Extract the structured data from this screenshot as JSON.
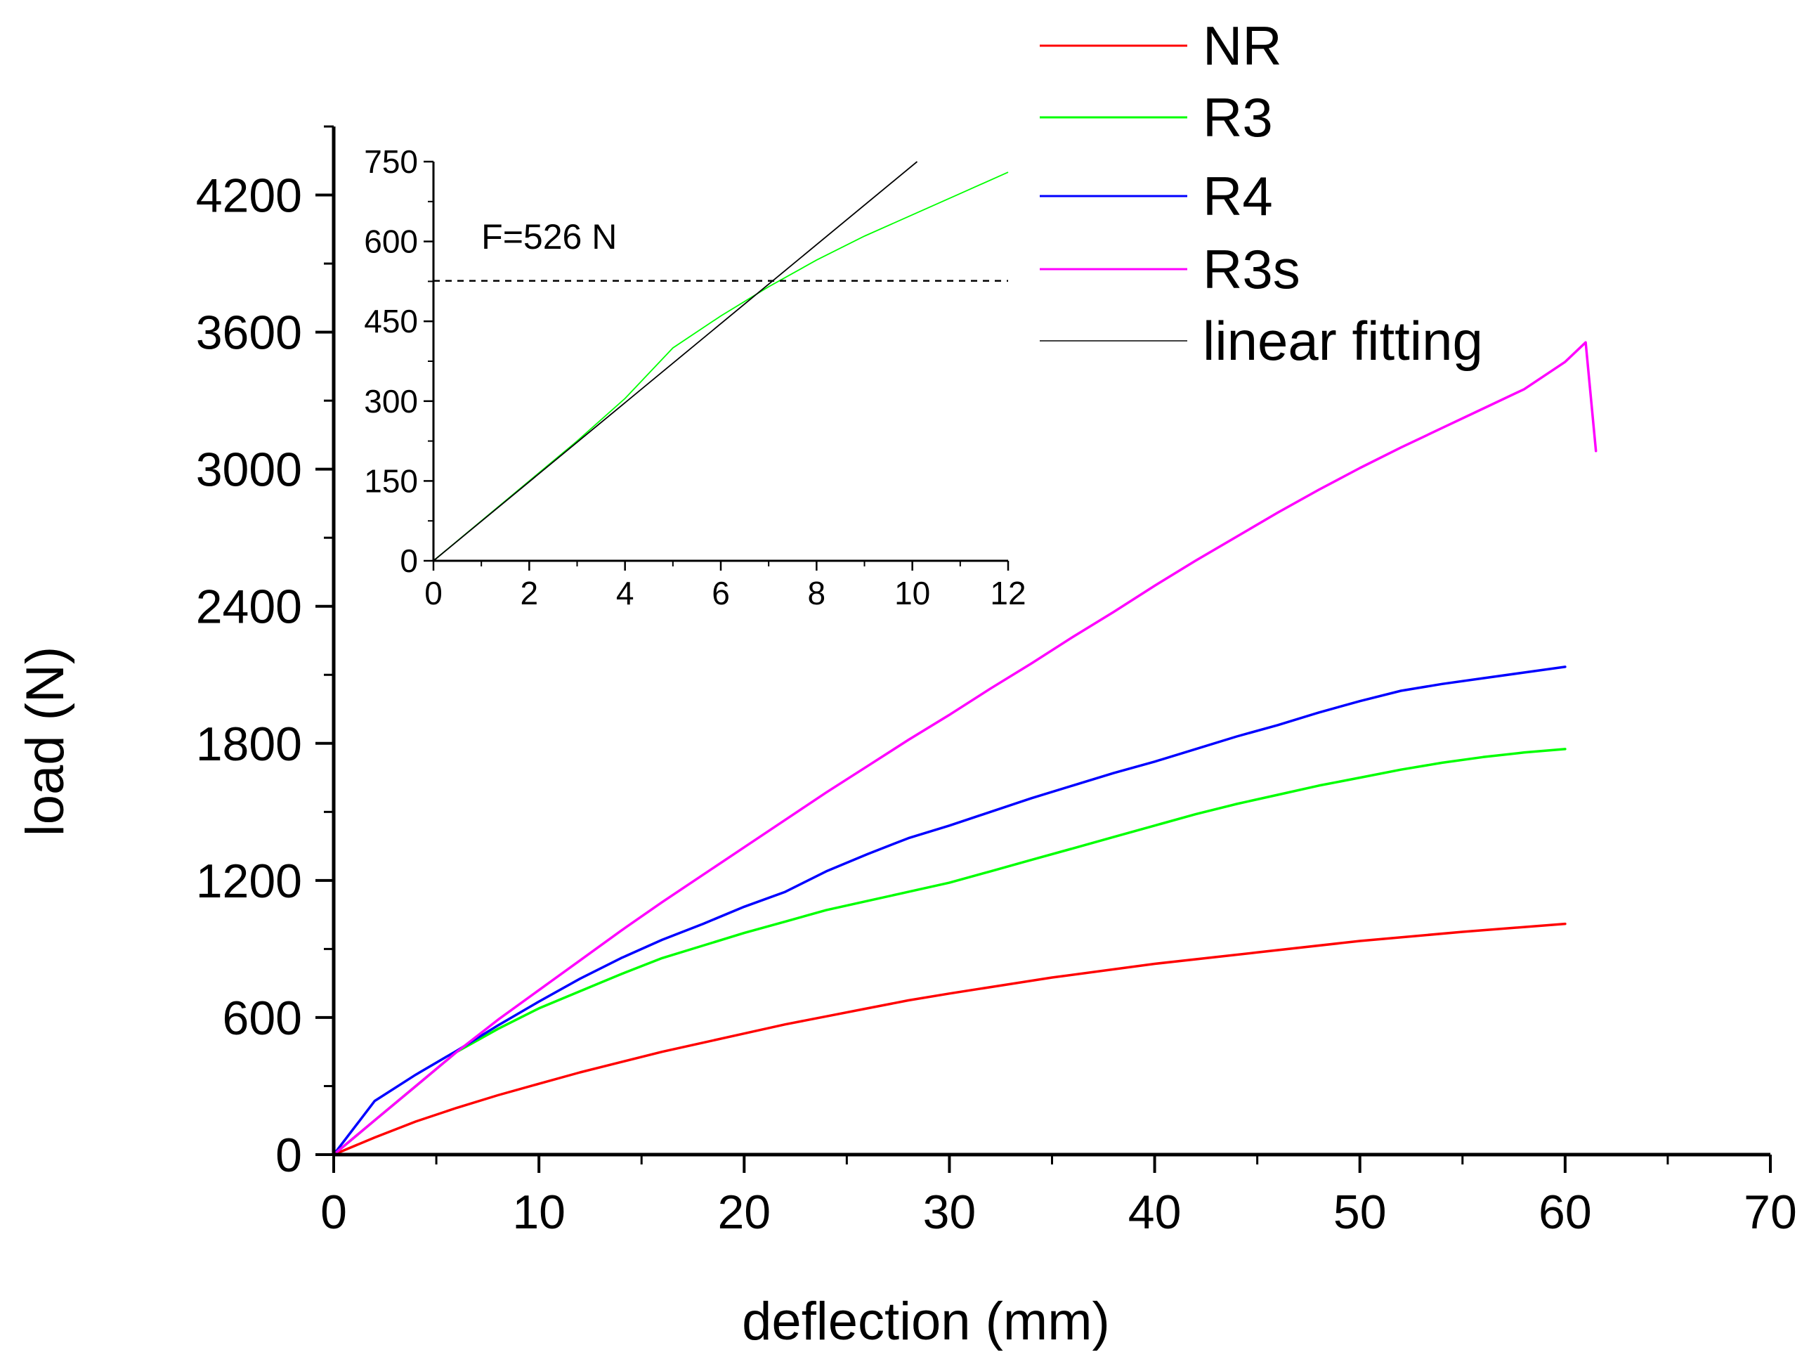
{
  "chart_data": [
    {
      "type": "line",
      "title": "",
      "xlabel": "deflection (mm)",
      "ylabel": "load (N)",
      "xlim": [
        0,
        70
      ],
      "ylim": [
        0,
        4500
      ],
      "xticks": [
        0,
        10,
        20,
        30,
        40,
        50,
        60,
        70
      ],
      "xtick_labels": [
        "0",
        "10",
        "20",
        "30",
        "40",
        "50",
        "60",
        "70"
      ],
      "yticks": [
        0,
        600,
        1200,
        1800,
        2400,
        3000,
        3600,
        4200
      ],
      "ytick_labels": [
        "0",
        "600",
        "1200",
        "1800",
        "2400",
        "3000",
        "3600",
        "4200"
      ],
      "grid": false,
      "legend_position": "top-right",
      "series": [
        {
          "name": "NR",
          "color": "#ff0000",
          "x": [
            0,
            2,
            4,
            6,
            8,
            10,
            12,
            14,
            16,
            18,
            20,
            22,
            24,
            26,
            28,
            30,
            35,
            40,
            45,
            50,
            55,
            60
          ],
          "y": [
            0,
            75,
            145,
            205,
            260,
            310,
            360,
            405,
            450,
            490,
            530,
            570,
            605,
            640,
            675,
            705,
            775,
            835,
            885,
            935,
            975,
            1010
          ]
        },
        {
          "name": "R3",
          "color": "#00ff00",
          "x": [
            0,
            2,
            4,
            6,
            8,
            10,
            12,
            14,
            16,
            18,
            20,
            22,
            24,
            26,
            28,
            30,
            32,
            34,
            36,
            38,
            40,
            42,
            44,
            46,
            48,
            50,
            52,
            54,
            56,
            58,
            60
          ],
          "y": [
            0,
            150,
            300,
            450,
            550,
            640,
            715,
            790,
            860,
            915,
            970,
            1020,
            1070,
            1110,
            1150,
            1190,
            1240,
            1290,
            1340,
            1390,
            1440,
            1490,
            1535,
            1575,
            1615,
            1650,
            1685,
            1715,
            1740,
            1760,
            1775
          ]
        },
        {
          "name": "R4",
          "color": "#0000ff",
          "x": [
            0,
            2,
            4,
            6,
            8,
            10,
            12,
            14,
            16,
            18,
            20,
            22,
            24,
            26,
            28,
            30,
            32,
            34,
            36,
            38,
            40,
            42,
            44,
            46,
            48,
            50,
            52,
            54,
            56,
            58,
            60
          ],
          "y": [
            0,
            235,
            350,
            455,
            565,
            670,
            770,
            860,
            940,
            1010,
            1085,
            1150,
            1240,
            1315,
            1385,
            1440,
            1500,
            1560,
            1615,
            1670,
            1720,
            1775,
            1830,
            1880,
            1935,
            1985,
            2030,
            2060,
            2085,
            2110,
            2135
          ]
        },
        {
          "name": "R3s",
          "color": "#ff00ff",
          "x": [
            0,
            2,
            4,
            6,
            8,
            10,
            12,
            14,
            16,
            18,
            20,
            22,
            24,
            26,
            28,
            30,
            32,
            34,
            36,
            38,
            40,
            42,
            44,
            46,
            48,
            50,
            52,
            54,
            56,
            58,
            60,
            61,
            61.5
          ],
          "y": [
            0,
            150,
            300,
            450,
            590,
            720,
            850,
            980,
            1105,
            1225,
            1345,
            1465,
            1585,
            1700,
            1815,
            1925,
            2040,
            2150,
            2265,
            2375,
            2490,
            2600,
            2705,
            2810,
            2910,
            3005,
            3095,
            3180,
            3265,
            3350,
            3470,
            3555,
            3080
          ]
        }
      ],
      "legend_entries": [
        {
          "name": "NR",
          "color": "#ff0000"
        },
        {
          "name": "R3",
          "color": "#00ff00"
        },
        {
          "name": "R4",
          "color": "#0000ff"
        },
        {
          "name": "R3s",
          "color": "#ff00ff"
        },
        {
          "name": "linear fitting",
          "color": "#000000"
        }
      ]
    },
    {
      "type": "line",
      "title": "",
      "xlabel": "",
      "ylabel": "",
      "xlim": [
        0,
        12
      ],
      "ylim": [
        0,
        750
      ],
      "xticks": [
        0,
        2,
        4,
        6,
        8,
        10,
        12
      ],
      "xtick_labels": [
        "0",
        "2",
        "4",
        "6",
        "8",
        "10",
        "12"
      ],
      "yticks": [
        0,
        150,
        300,
        450,
        600,
        750
      ],
      "ytick_labels": [
        "0",
        "150",
        "300",
        "450",
        "600",
        "750"
      ],
      "grid": false,
      "annotations": [
        {
          "text": "F=526 N",
          "x": 1,
          "y": 610
        },
        {
          "type": "hline",
          "y": 526,
          "style": "dashed"
        }
      ],
      "series": [
        {
          "name": "R3",
          "color": "#00ff00",
          "x": [
            0,
            1,
            2,
            3,
            4,
            5,
            6,
            7,
            8,
            9,
            10,
            11,
            12
          ],
          "y": [
            0,
            75,
            150,
            225,
            305,
            400,
            460,
            515,
            565,
            610,
            650,
            690,
            730
          ]
        },
        {
          "name": "linear fitting",
          "color": "#000000",
          "x": [
            0,
            10.1
          ],
          "y": [
            0,
            750
          ]
        }
      ]
    }
  ]
}
